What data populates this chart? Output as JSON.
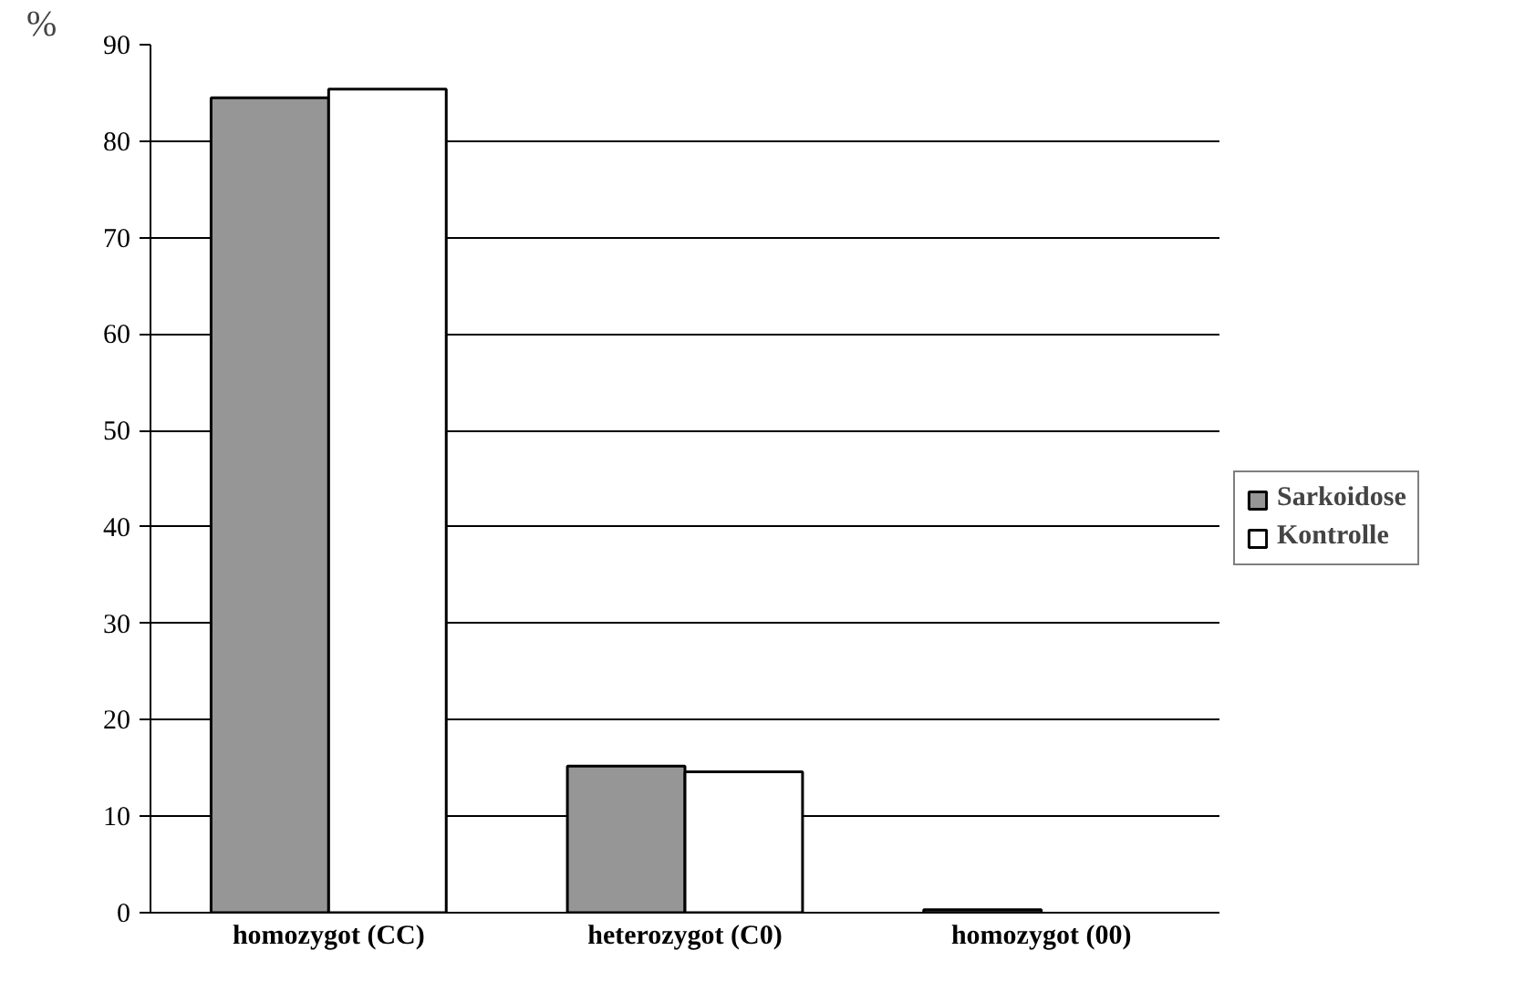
{
  "chart_data": {
    "type": "bar",
    "ylabel": "%",
    "categories": [
      "homozygot (CC)",
      "heterozygot (C0)",
      "homozygot (00)"
    ],
    "series": [
      {
        "name": "Sarkoidose",
        "color": "#969696",
        "values": [
          84.5,
          15.2,
          0.3
        ]
      },
      {
        "name": "Kontrolle",
        "color": "#ffffff",
        "values": [
          85.4,
          14.6,
          0
        ]
      }
    ],
    "ylim": [
      0,
      90
    ],
    "yticks": [
      0,
      10,
      20,
      30,
      40,
      50,
      60,
      70,
      80,
      90
    ],
    "grid": "y",
    "legend": "right"
  }
}
